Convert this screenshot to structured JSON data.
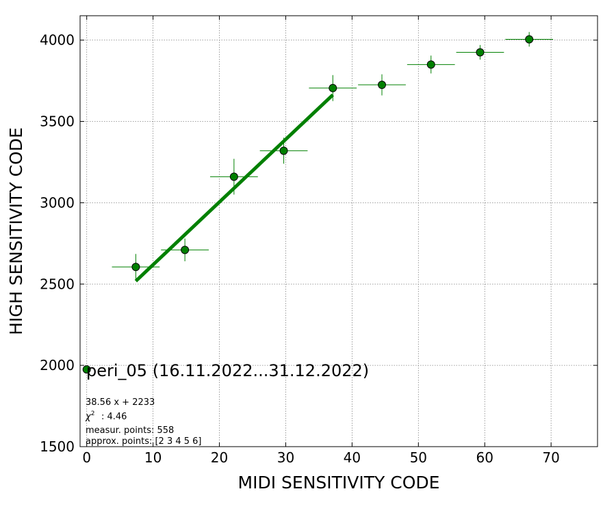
{
  "chart_data": {
    "type": "scatter",
    "title": "",
    "xlabel": "MIDI SENSITIVITY CODE",
    "ylabel": "HIGH SENSITIVITY CODE",
    "xlim": [
      -1,
      77
    ],
    "ylim": [
      1500,
      4150
    ],
    "xticks": [
      0,
      10,
      20,
      30,
      40,
      50,
      60,
      70
    ],
    "yticks": [
      1500,
      2000,
      2500,
      3000,
      3500,
      4000
    ],
    "grid": true,
    "colors": {
      "marker_fill": "#008000",
      "error_bars": "#008000",
      "fit_line": "#008000",
      "grid": "#808080"
    },
    "series": [
      {
        "name": "peri_05 (16.11.2022...31.12.2022)",
        "points": [
          {
            "x": 0,
            "y": 1975,
            "xerr": 0,
            "yerr": 0
          },
          {
            "x": 7.4,
            "y": 2605,
            "xerr": 3.6,
            "yerr": 80
          },
          {
            "x": 14.8,
            "y": 2710,
            "xerr": 3.6,
            "yerr": 70
          },
          {
            "x": 22.2,
            "y": 3160,
            "xerr": 3.6,
            "yerr": 110
          },
          {
            "x": 29.7,
            "y": 3320,
            "xerr": 3.6,
            "yerr": 80
          },
          {
            "x": 37.1,
            "y": 3705,
            "xerr": 3.6,
            "yerr": 80
          },
          {
            "x": 44.5,
            "y": 3725,
            "xerr": 3.6,
            "yerr": 65
          },
          {
            "x": 51.9,
            "y": 3850,
            "xerr": 3.6,
            "yerr": 55
          },
          {
            "x": 59.3,
            "y": 3925,
            "xerr": 3.6,
            "yerr": 45
          },
          {
            "x": 66.7,
            "y": 4005,
            "xerr": 3.6,
            "yerr": 45
          }
        ]
      }
    ],
    "fit": {
      "slope": 38.56,
      "intercept": 2233,
      "x_from": 7.4,
      "x_to": 37.1
    },
    "annotations": {
      "legend": "peri_05 (16.11.2022...31.12.2022)",
      "equation": "38.56 x + 2233",
      "chi2": ": 4.46",
      "measur_points": "measur. points: 558",
      "approx_points": "approx. points: [2 3 4 5 6]"
    }
  }
}
